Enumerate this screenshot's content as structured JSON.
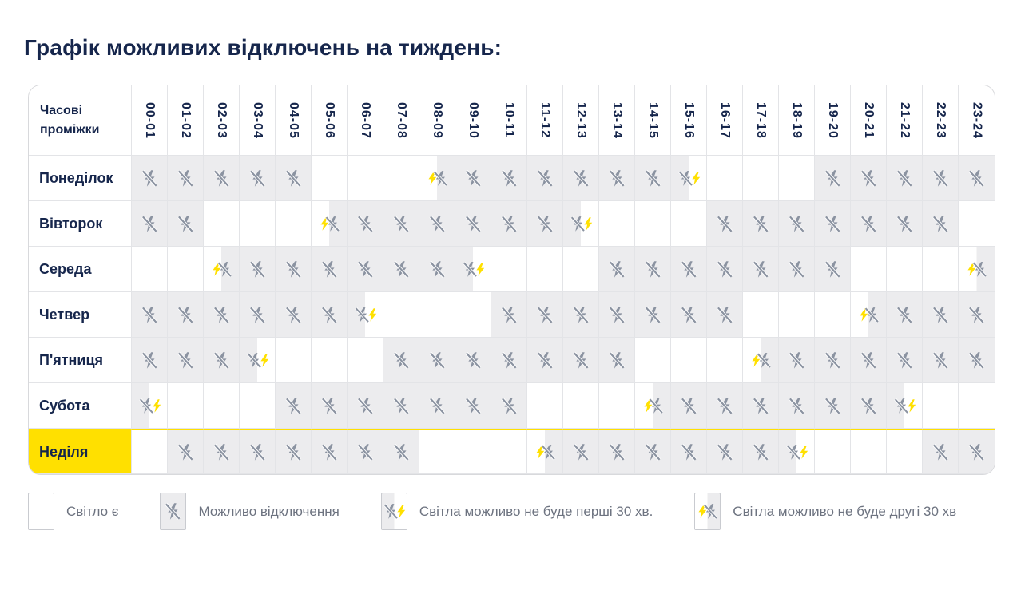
{
  "title": "Графік можливих відключень на тиждень:",
  "colors": {
    "accent_yellow": "#FFE000",
    "title_navy": "#16264C",
    "icon_gray": "#8B93A1",
    "outage_cell_gray": "#ECECEE",
    "legend_text_gray": "#6D7380"
  },
  "table": {
    "corner_label": "Часові\nпроміжки",
    "time_slots": [
      "00-01",
      "01-02",
      "02-03",
      "03-04",
      "04-05",
      "05-06",
      "06-07",
      "07-08",
      "08-09",
      "09-10",
      "10-11",
      "11-12",
      "12-13",
      "13-14",
      "14-15",
      "15-16",
      "16-17",
      "17-18",
      "18-19",
      "19-20",
      "20-21",
      "21-22",
      "22-23",
      "23-24"
    ],
    "rows": [
      {
        "day": "Понеділок",
        "highlight": false,
        "cells": [
          "off",
          "off",
          "off",
          "off",
          "off",
          "on",
          "on",
          "on",
          "off_second_30",
          "off",
          "off",
          "off",
          "off",
          "off",
          "off",
          "off_first_30",
          "on",
          "on",
          "on",
          "off",
          "off",
          "off",
          "off",
          "off"
        ]
      },
      {
        "day": "Вівторок",
        "highlight": false,
        "cells": [
          "off",
          "off",
          "on",
          "on",
          "on",
          "off_second_30",
          "off",
          "off",
          "off",
          "off",
          "off",
          "off",
          "off_first_30",
          "on",
          "on",
          "on",
          "off",
          "off",
          "off",
          "off",
          "off",
          "off",
          "off",
          "on"
        ]
      },
      {
        "day": "Середа",
        "highlight": false,
        "cells": [
          "on",
          "on",
          "off_second_30",
          "off",
          "off",
          "off",
          "off",
          "off",
          "off",
          "off_first_30",
          "on",
          "on",
          "on",
          "off",
          "off",
          "off",
          "off",
          "off",
          "off",
          "off",
          "on",
          "on",
          "on",
          "off_second_30"
        ]
      },
      {
        "day": "Четвер",
        "highlight": false,
        "cells": [
          "off",
          "off",
          "off",
          "off",
          "off",
          "off",
          "off_first_30",
          "on",
          "on",
          "on",
          "off",
          "off",
          "off",
          "off",
          "off",
          "off",
          "off",
          "on",
          "on",
          "on",
          "off_second_30",
          "off",
          "off",
          "off"
        ]
      },
      {
        "day": "П'ятниця",
        "highlight": false,
        "cells": [
          "off",
          "off",
          "off",
          "off_first_30",
          "on",
          "on",
          "on",
          "off",
          "off",
          "off",
          "off",
          "off",
          "off",
          "off",
          "on",
          "on",
          "on",
          "off_second_30",
          "off",
          "off",
          "off",
          "off",
          "off",
          "off"
        ]
      },
      {
        "day": "Субота",
        "highlight": false,
        "cells": [
          "off_first_30",
          "on",
          "on",
          "on",
          "off",
          "off",
          "off",
          "off",
          "off",
          "off",
          "off",
          "on",
          "on",
          "on",
          "off_second_30",
          "off",
          "off",
          "off",
          "off",
          "off",
          "off",
          "off_first_30",
          "on",
          "on"
        ]
      },
      {
        "day": "Неділя",
        "highlight": true,
        "cells": [
          "on",
          "off",
          "off",
          "off",
          "off",
          "off",
          "off",
          "off",
          "on",
          "on",
          "on",
          "off_second_30",
          "off",
          "off",
          "off",
          "off",
          "off",
          "off",
          "off_first_30",
          "on",
          "on",
          "on",
          "off",
          "off"
        ]
      }
    ]
  },
  "cell_states": {
    "on": "Світло є",
    "off": "Можливо відключення",
    "off_first_30": "Світла можливо не буде перші 30 хв.",
    "off_second_30": "Світла можливо не буде другі 30 хв"
  },
  "legend": [
    {
      "state": "on",
      "label": "Світло є"
    },
    {
      "state": "off",
      "label": "Можливо відключення"
    },
    {
      "state": "off_first_30",
      "label": "Світла можливо не буде перші 30 хв."
    },
    {
      "state": "off_second_30",
      "label": "Світла можливо не буде другі 30 хв"
    }
  ]
}
